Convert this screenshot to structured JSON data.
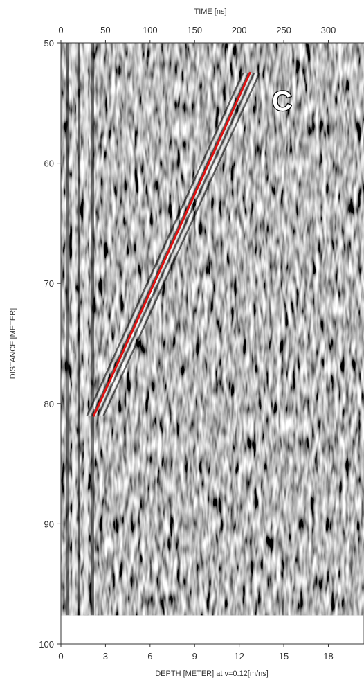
{
  "chart_data": {
    "type": "radargram",
    "title_top": "TIME [ns]",
    "title_bottom": "DEPTH [METER] at v=0.12[m/ns]",
    "ylabel": "DISTANCE [METER]",
    "top_axis": {
      "ticks": [
        0,
        50,
        100,
        150,
        200,
        250,
        300
      ],
      "range": [
        0,
        340
      ]
    },
    "bottom_axis": {
      "ticks": [
        0,
        3,
        6,
        9,
        12,
        15,
        18
      ],
      "range": [
        0,
        20.4
      ]
    },
    "left_axis": {
      "ticks": [
        50,
        60,
        70,
        80,
        90,
        100
      ],
      "range": [
        50,
        100
      ]
    },
    "data_extent": {
      "distance_max": 97.6
    },
    "annotation_line": {
      "color": "#e01010",
      "start": {
        "time_ns": 37,
        "distance_m": 81
      },
      "end": {
        "time_ns": 212,
        "distance_m": 52.5
      }
    },
    "annotation_label": {
      "text": "C",
      "time_ns": 248,
      "distance_m": 54.8
    }
  }
}
